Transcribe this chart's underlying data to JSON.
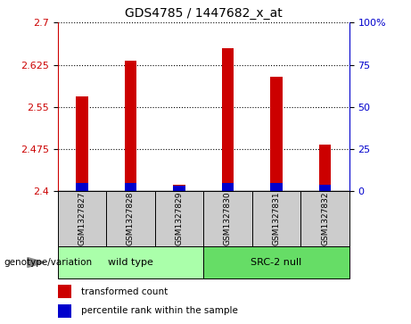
{
  "title": "GDS4785 / 1447682_x_at",
  "samples": [
    "GSM1327827",
    "GSM1327828",
    "GSM1327829",
    "GSM1327830",
    "GSM1327831",
    "GSM1327832"
  ],
  "red_values": [
    2.568,
    2.633,
    2.412,
    2.655,
    2.603,
    2.483
  ],
  "blue_heights": [
    0.014,
    0.014,
    0.01,
    0.014,
    0.014,
    0.012
  ],
  "ymin": 2.4,
  "ymax": 2.7,
  "yticks": [
    2.4,
    2.475,
    2.55,
    2.625,
    2.7
  ],
  "y2min": 0,
  "y2max": 100,
  "y2ticks": [
    0,
    25,
    50,
    75,
    100
  ],
  "group_labels": [
    "wild type",
    "SRC-2 null"
  ],
  "group_ranges": [
    [
      0,
      3
    ],
    [
      3,
      6
    ]
  ],
  "group_colors": [
    "#aaffaa",
    "#66dd66"
  ],
  "genotype_label": "genotype/variation",
  "legend_red": "transformed count",
  "legend_blue": "percentile rank within the sample",
  "bar_color_red": "#cc0000",
  "bar_color_blue": "#0000cc",
  "bar_width": 0.25,
  "grid_color": "black",
  "background_plot": "white",
  "tick_label_color_left": "#cc0000",
  "tick_label_color_right": "#0000cc",
  "sample_box_color": "#cccccc"
}
